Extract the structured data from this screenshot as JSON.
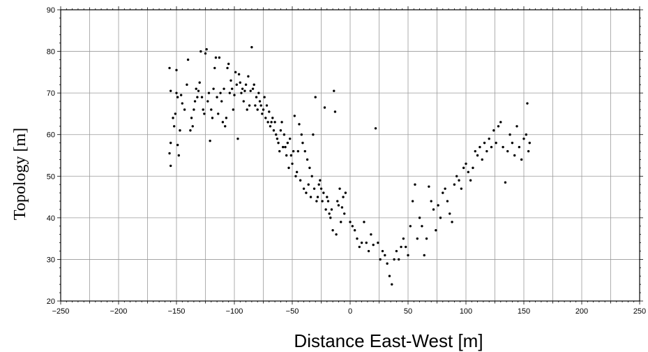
{
  "chart_data": {
    "type": "scatter",
    "title": "",
    "xlabel": "Distance East-West [m]",
    "ylabel": "Topology [m]",
    "xlim": [
      -250,
      250
    ],
    "ylim": [
      20,
      90
    ],
    "xticks": [
      -250,
      -200,
      -150,
      -100,
      -50,
      0,
      50,
      100,
      150,
      200,
      250
    ],
    "yticks": [
      20,
      30,
      40,
      50,
      60,
      70,
      80,
      90
    ],
    "x_gridlines": [
      -225,
      -200,
      -175,
      -150,
      -125,
      -100,
      -75,
      -50,
      -25,
      0,
      25,
      50,
      75,
      100,
      125,
      150,
      175,
      200,
      225
    ],
    "y_gridlines": [
      30,
      40,
      50,
      60,
      70,
      80
    ],
    "grid": true,
    "marker_color": "#000000",
    "series": [
      {
        "points": [
          [
            -156,
            76
          ],
          [
            -155,
            70.5
          ],
          [
            -155,
            58
          ],
          [
            -156,
            55.5
          ],
          [
            -155,
            52.5
          ],
          [
            -153,
            64
          ],
          [
            -152,
            62
          ],
          [
            -151,
            65
          ],
          [
            -150,
            75.5
          ],
          [
            -150,
            70
          ],
          [
            -149,
            69
          ],
          [
            -149,
            57.5
          ],
          [
            -148,
            55
          ],
          [
            -147,
            61
          ],
          [
            -146,
            69.5
          ],
          [
            -145,
            67.5
          ],
          [
            -143,
            66
          ],
          [
            -141,
            72
          ],
          [
            -140,
            78
          ],
          [
            -138,
            61
          ],
          [
            -137,
            64
          ],
          [
            -136,
            62
          ],
          [
            -135,
            66
          ],
          [
            -134,
            68
          ],
          [
            -133,
            71
          ],
          [
            -132,
            69
          ],
          [
            -131,
            70.5
          ],
          [
            -130,
            72.5
          ],
          [
            -129,
            80
          ],
          [
            -128,
            69
          ],
          [
            -127,
            66
          ],
          [
            -126,
            65
          ],
          [
            -125,
            79.5
          ],
          [
            -124,
            80.5
          ],
          [
            -123,
            68
          ],
          [
            -122,
            70
          ],
          [
            -121,
            58.5
          ],
          [
            -120,
            66
          ],
          [
            -119,
            64
          ],
          [
            -118,
            71
          ],
          [
            -117,
            76
          ],
          [
            -116,
            78.5
          ],
          [
            -115,
            69
          ],
          [
            -114,
            65
          ],
          [
            -113,
            78.5
          ],
          [
            -112,
            70
          ],
          [
            -111,
            68
          ],
          [
            -110,
            63
          ],
          [
            -109,
            71
          ],
          [
            -108,
            62
          ],
          [
            -107,
            64
          ],
          [
            -106,
            76
          ],
          [
            -105,
            77
          ],
          [
            -104,
            70
          ],
          [
            -103,
            73
          ],
          [
            -102,
            71
          ],
          [
            -101,
            66
          ],
          [
            -100,
            69.5
          ],
          [
            -99,
            75
          ],
          [
            -98,
            72
          ],
          [
            -97,
            59
          ],
          [
            -96,
            74.5
          ],
          [
            -95,
            72.5
          ],
          [
            -94,
            70
          ],
          [
            -93,
            71
          ],
          [
            -92,
            68
          ],
          [
            -91,
            70.5
          ],
          [
            -90,
            72
          ],
          [
            -89,
            66
          ],
          [
            -88,
            74
          ],
          [
            -87,
            67
          ],
          [
            -86,
            70.5
          ],
          [
            -85,
            81
          ],
          [
            -84,
            71
          ],
          [
            -83,
            72
          ],
          [
            -82,
            67
          ],
          [
            -81,
            69
          ],
          [
            -80,
            66
          ],
          [
            -79,
            70
          ],
          [
            -78,
            68
          ],
          [
            -77,
            67
          ],
          [
            -76,
            65
          ],
          [
            -75,
            66
          ],
          [
            -74,
            69
          ],
          [
            -73,
            64
          ],
          [
            -72,
            67
          ],
          [
            -71,
            63
          ],
          [
            -70,
            65.5
          ],
          [
            -69,
            62
          ],
          [
            -68,
            63
          ],
          [
            -67,
            64
          ],
          [
            -66,
            61
          ],
          [
            -65,
            63
          ],
          [
            -64,
            60
          ],
          [
            -63,
            59
          ],
          [
            -62,
            58
          ],
          [
            -61,
            56
          ],
          [
            -60,
            61
          ],
          [
            -59,
            63
          ],
          [
            -58,
            57
          ],
          [
            -57,
            60
          ],
          [
            -56,
            57
          ],
          [
            -55,
            55
          ],
          [
            -54,
            58
          ],
          [
            -53,
            52
          ],
          [
            -52,
            59
          ],
          [
            -51,
            55
          ],
          [
            -50,
            53
          ],
          [
            -49,
            56
          ],
          [
            -48,
            64.5
          ],
          [
            -47,
            50
          ],
          [
            -46,
            51
          ],
          [
            -45,
            56
          ],
          [
            -44,
            62.5
          ],
          [
            -43,
            49
          ],
          [
            -42,
            60
          ],
          [
            -41,
            58
          ],
          [
            -40,
            47
          ],
          [
            -39,
            56
          ],
          [
            -38,
            46
          ],
          [
            -37,
            54
          ],
          [
            -36,
            48
          ],
          [
            -35,
            52
          ],
          [
            -34,
            45
          ],
          [
            -33,
            50
          ],
          [
            -32,
            60
          ],
          [
            -31,
            47
          ],
          [
            -30,
            69
          ],
          [
            -29,
            44
          ],
          [
            -28,
            45
          ],
          [
            -27,
            48
          ],
          [
            -26,
            49
          ],
          [
            -25,
            47
          ],
          [
            -24,
            44
          ],
          [
            -23,
            46
          ],
          [
            -22,
            66.5
          ],
          [
            -21,
            42
          ],
          [
            -20,
            45
          ],
          [
            -19,
            44
          ],
          [
            -18,
            41
          ],
          [
            -17,
            40
          ],
          [
            -16,
            42
          ],
          [
            -15,
            37
          ],
          [
            -14,
            70.5
          ],
          [
            -13,
            65.5
          ],
          [
            -12,
            36
          ],
          [
            -11,
            44
          ],
          [
            -10,
            43
          ],
          [
            -9,
            47
          ],
          [
            -8,
            39
          ],
          [
            -7,
            42.5
          ],
          [
            -6,
            45
          ],
          [
            -5,
            41
          ],
          [
            -4,
            46
          ],
          [
            0,
            39
          ],
          [
            2,
            38
          ],
          [
            4,
            37
          ],
          [
            6,
            35
          ],
          [
            8,
            33
          ],
          [
            10,
            34
          ],
          [
            12,
            39
          ],
          [
            14,
            34
          ],
          [
            16,
            32
          ],
          [
            18,
            36
          ],
          [
            20,
            33.5
          ],
          [
            22,
            61.5
          ],
          [
            24,
            34
          ],
          [
            26,
            30
          ],
          [
            28,
            32
          ],
          [
            30,
            31
          ],
          [
            32,
            29
          ],
          [
            34,
            26
          ],
          [
            36,
            24
          ],
          [
            38,
            30
          ],
          [
            40,
            32
          ],
          [
            42,
            30
          ],
          [
            44,
            33
          ],
          [
            46,
            35
          ],
          [
            48,
            33
          ],
          [
            50,
            31
          ],
          [
            52,
            38
          ],
          [
            54,
            44
          ],
          [
            56,
            48
          ],
          [
            58,
            35
          ],
          [
            60,
            40
          ],
          [
            62,
            38
          ],
          [
            64,
            31
          ],
          [
            66,
            35
          ],
          [
            68,
            47.5
          ],
          [
            70,
            44
          ],
          [
            72,
            42
          ],
          [
            74,
            37
          ],
          [
            76,
            43
          ],
          [
            78,
            40
          ],
          [
            80,
            46
          ],
          [
            82,
            47
          ],
          [
            84,
            44
          ],
          [
            86,
            41
          ],
          [
            88,
            39
          ],
          [
            90,
            48
          ],
          [
            92,
            50
          ],
          [
            94,
            49
          ],
          [
            96,
            47
          ],
          [
            98,
            52
          ],
          [
            100,
            53
          ],
          [
            102,
            51
          ],
          [
            104,
            49
          ],
          [
            106,
            52
          ],
          [
            108,
            56
          ],
          [
            110,
            55
          ],
          [
            112,
            57
          ],
          [
            114,
            54
          ],
          [
            116,
            58
          ],
          [
            118,
            56
          ],
          [
            120,
            59
          ],
          [
            122,
            57
          ],
          [
            124,
            61
          ],
          [
            126,
            58
          ],
          [
            128,
            62
          ],
          [
            130,
            63
          ],
          [
            132,
            57
          ],
          [
            134,
            48.5
          ],
          [
            136,
            56
          ],
          [
            138,
            60
          ],
          [
            140,
            58
          ],
          [
            142,
            55
          ],
          [
            144,
            62
          ],
          [
            146,
            57
          ],
          [
            148,
            54
          ],
          [
            150,
            59
          ],
          [
            152,
            60
          ],
          [
            153,
            67.5
          ],
          [
            154,
            56
          ],
          [
            155,
            58
          ]
        ]
      }
    ]
  }
}
